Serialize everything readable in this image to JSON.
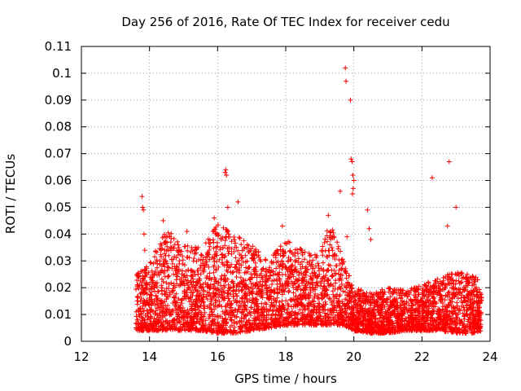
{
  "chart_data": {
    "type": "scatter",
    "title": "Day 256 of 2016, Rate Of TEC Index for receiver cedu",
    "xlabel": "GPS time / hours",
    "ylabel": "ROTI / TECUs",
    "xlim": [
      12,
      24
    ],
    "ylim": [
      0,
      0.11
    ],
    "x_ticks": [
      12,
      14,
      16,
      18,
      20,
      22,
      24
    ],
    "x_tick_labels": [
      "12",
      "14",
      "16",
      "18",
      "20",
      "22",
      "24"
    ],
    "y_ticks": [
      0,
      0.01,
      0.02,
      0.03,
      0.04,
      0.05,
      0.06,
      0.07,
      0.08,
      0.09,
      0.1,
      0.11
    ],
    "y_tick_labels": [
      "0",
      "0.01",
      "0.02",
      "0.03",
      "0.04",
      "0.05",
      "0.06",
      "0.07",
      "0.08",
      "0.09",
      "0.1",
      "0.11"
    ],
    "grid": true,
    "marker": "+",
    "color": "#ff0000",
    "series": [
      {
        "name": "ROTI",
        "x_range": [
          13.6,
          23.75
        ],
        "envelope": [
          {
            "x": 13.6,
            "lo": 0.004,
            "hi": 0.025
          },
          {
            "x": 14.0,
            "lo": 0.004,
            "hi": 0.03
          },
          {
            "x": 14.5,
            "lo": 0.004,
            "hi": 0.042
          },
          {
            "x": 15.0,
            "lo": 0.004,
            "hi": 0.036
          },
          {
            "x": 15.5,
            "lo": 0.004,
            "hi": 0.035
          },
          {
            "x": 16.0,
            "lo": 0.003,
            "hi": 0.044
          },
          {
            "x": 16.5,
            "lo": 0.003,
            "hi": 0.04
          },
          {
            "x": 17.0,
            "lo": 0.004,
            "hi": 0.036
          },
          {
            "x": 17.5,
            "lo": 0.005,
            "hi": 0.03
          },
          {
            "x": 18.0,
            "lo": 0.006,
            "hi": 0.038
          },
          {
            "x": 18.5,
            "lo": 0.006,
            "hi": 0.034
          },
          {
            "x": 19.0,
            "lo": 0.006,
            "hi": 0.032
          },
          {
            "x": 19.3,
            "lo": 0.006,
            "hi": 0.045
          },
          {
            "x": 19.7,
            "lo": 0.006,
            "hi": 0.03
          },
          {
            "x": 20.0,
            "lo": 0.004,
            "hi": 0.02
          },
          {
            "x": 20.5,
            "lo": 0.003,
            "hi": 0.018
          },
          {
            "x": 21.0,
            "lo": 0.003,
            "hi": 0.02
          },
          {
            "x": 21.5,
            "lo": 0.004,
            "hi": 0.019
          },
          {
            "x": 22.0,
            "lo": 0.004,
            "hi": 0.021
          },
          {
            "x": 22.5,
            "lo": 0.004,
            "hi": 0.024
          },
          {
            "x": 23.0,
            "lo": 0.003,
            "hi": 0.026
          },
          {
            "x": 23.5,
            "lo": 0.003,
            "hi": 0.025
          },
          {
            "x": 23.75,
            "lo": 0.004,
            "hi": 0.022
          }
        ],
        "outliers": [
          [
            13.78,
            0.054
          ],
          [
            13.8,
            0.05
          ],
          [
            13.82,
            0.049
          ],
          [
            13.84,
            0.04
          ],
          [
            13.86,
            0.034
          ],
          [
            16.22,
            0.063
          ],
          [
            16.24,
            0.064
          ],
          [
            16.26,
            0.062
          ],
          [
            16.3,
            0.05
          ],
          [
            16.6,
            0.052
          ],
          [
            19.75,
            0.102
          ],
          [
            19.77,
            0.097
          ],
          [
            19.8,
            0.039
          ],
          [
            19.9,
            0.09
          ],
          [
            19.92,
            0.068
          ],
          [
            19.95,
            0.067
          ],
          [
            19.97,
            0.062
          ],
          [
            20.0,
            0.06
          ],
          [
            19.98,
            0.057
          ],
          [
            19.96,
            0.055
          ],
          [
            19.6,
            0.056
          ],
          [
            20.4,
            0.049
          ],
          [
            20.45,
            0.042
          ],
          [
            20.5,
            0.038
          ],
          [
            22.3,
            0.061
          ],
          [
            22.8,
            0.067
          ],
          [
            22.75,
            0.043
          ],
          [
            23.0,
            0.05
          ],
          [
            14.4,
            0.045
          ],
          [
            15.1,
            0.041
          ],
          [
            15.9,
            0.046
          ],
          [
            17.9,
            0.043
          ],
          [
            19.25,
            0.047
          ]
        ],
        "point_count": 4200
      }
    ]
  }
}
